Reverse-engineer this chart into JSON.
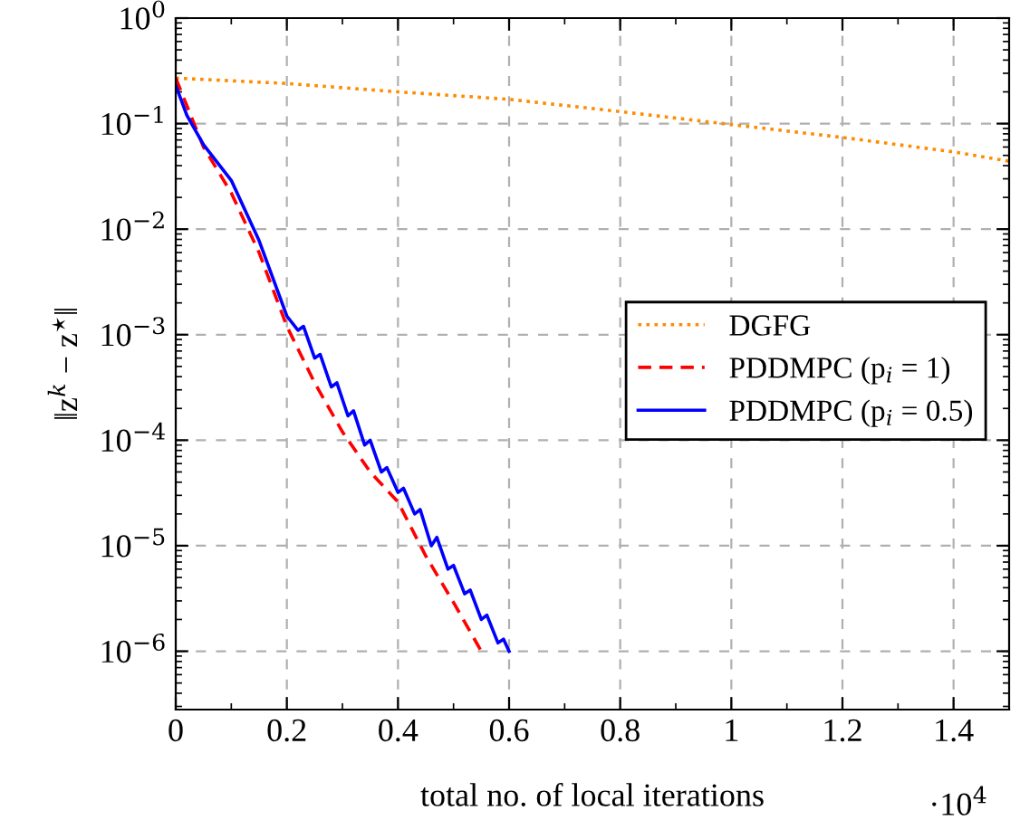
{
  "chart_data": {
    "type": "line",
    "xlabel": "total no. of local iterations",
    "ylabel": "‖z$^{k}$ − z$^{⋆}$‖",
    "annotations": [
      "·10$^{4}$"
    ],
    "log": "y",
    "grid": true,
    "legend": "right",
    "xlim": [
      0,
      1.5
    ],
    "xticks": [
      0,
      0.2,
      0.4,
      0.6,
      0.8,
      1,
      1.2,
      1.4
    ],
    "ylim": [
      2.8e-07,
      1
    ],
    "yticks": [
      {
        "value": 1e-06,
        "label": "10$^{−6}$"
      },
      {
        "value": 1e-05,
        "label": "10$^{−5}$"
      },
      {
        "value": 0.0001,
        "label": "10$^{−4}$"
      },
      {
        "value": 0.001,
        "label": "10$^{−3}$"
      },
      {
        "value": 0.01,
        "label": "10$^{−2}$"
      },
      {
        "value": 0.1,
        "label": "10$^{−1}$"
      },
      {
        "value": 1,
        "label": "10$^{0}$"
      }
    ],
    "series": [
      {
        "name": "DGFG",
        "color": "#ff8c00",
        "line_style": "dotted",
        "x": [
          0,
          0.2,
          0.4,
          0.6,
          0.8,
          1.0,
          1.2,
          1.4,
          1.5
        ],
        "values": [
          0.27,
          0.24,
          0.2,
          0.17,
          0.13,
          0.098,
          0.074,
          0.054,
          0.044
        ]
      },
      {
        "name": "PDDMPC (p$_{i}$ = 1)",
        "color": "#ff0000",
        "line_style": "dashed",
        "x": [
          0,
          0.05,
          0.1,
          0.15,
          0.2,
          0.25,
          0.3,
          0.35,
          0.4,
          0.45,
          0.5,
          0.55
        ],
        "values": [
          0.27,
          0.06,
          0.022,
          0.006,
          0.0012,
          0.00035,
          0.00012,
          5e-05,
          2.6e-05,
          8e-06,
          2.9e-06,
          1e-06
        ]
      },
      {
        "name": "PDDMPC (p$_{i}$ = 0.5)",
        "color": "#0000ff",
        "line_style": "solid",
        "x": [
          0,
          0.02,
          0.05,
          0.1,
          0.15,
          0.2,
          0.22,
          0.23,
          0.25,
          0.26,
          0.28,
          0.29,
          0.31,
          0.32,
          0.34,
          0.35,
          0.37,
          0.38,
          0.4,
          0.41,
          0.43,
          0.44,
          0.46,
          0.47,
          0.49,
          0.5,
          0.52,
          0.53,
          0.55,
          0.56,
          0.58,
          0.59,
          0.6
        ],
        "values": [
          0.23,
          0.12,
          0.063,
          0.029,
          0.0078,
          0.0015,
          0.0011,
          0.0012,
          0.0006,
          0.00065,
          0.00032,
          0.00035,
          0.00017,
          0.00019,
          9e-05,
          0.0001,
          5e-05,
          5.5e-05,
          3.2e-05,
          3.5e-05,
          2e-05,
          2.2e-05,
          1e-05,
          1.2e-05,
          6e-06,
          6.5e-06,
          3.5e-06,
          3.8e-06,
          2e-06,
          2.2e-06,
          1.2e-06,
          1.3e-06,
          1e-06
        ]
      }
    ]
  }
}
